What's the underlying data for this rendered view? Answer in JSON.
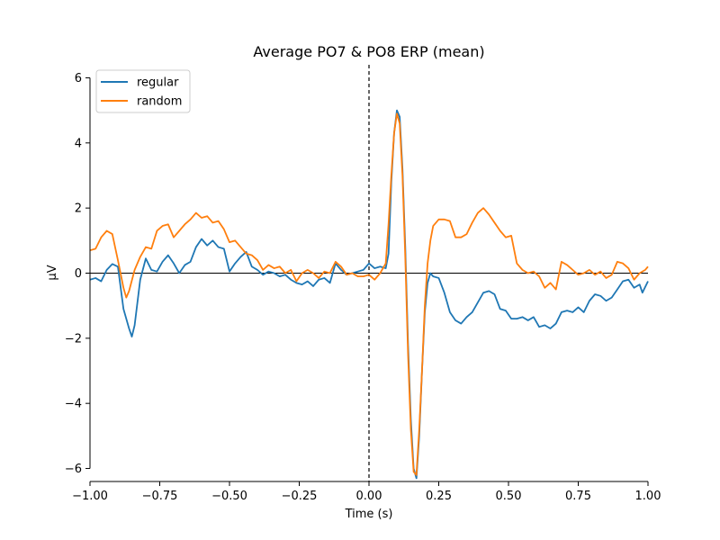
{
  "chart_data": {
    "type": "line",
    "title": "Average PO7 & PO8 ERP (mean)",
    "xlabel": "Time (s)",
    "ylabel": "µV",
    "xlim": [
      -1.0,
      1.0
    ],
    "ylim": [
      -6.4,
      6.4
    ],
    "xticks": [
      -1.0,
      -0.75,
      -0.5,
      -0.25,
      0.0,
      0.25,
      0.5,
      0.75,
      1.0
    ],
    "xtick_labels": [
      "−1.00",
      "−0.75",
      "−0.50",
      "−0.25",
      "0.00",
      "0.25",
      "0.50",
      "0.75",
      "1.00"
    ],
    "yticks": [
      -6,
      -4,
      -2,
      0,
      2,
      4,
      6
    ],
    "ytick_labels": [
      "−6",
      "−4",
      "−2",
      "0",
      "2",
      "4",
      "6"
    ],
    "grid": false,
    "legend": "top-left",
    "hline_y": 0,
    "vline_x": 0,
    "series": [
      {
        "name": "regular",
        "color": "#1f77b4",
        "points": [
          [
            -1.0,
            -0.2
          ],
          [
            -0.98,
            -0.15
          ],
          [
            -0.96,
            -0.25
          ],
          [
            -0.94,
            0.1
          ],
          [
            -0.92,
            0.28
          ],
          [
            -0.9,
            0.2
          ],
          [
            -0.88,
            -1.1
          ],
          [
            -0.86,
            -1.7
          ],
          [
            -0.85,
            -1.95
          ],
          [
            -0.84,
            -1.6
          ],
          [
            -0.82,
            -0.2
          ],
          [
            -0.8,
            0.45
          ],
          [
            -0.78,
            0.1
          ],
          [
            -0.76,
            0.05
          ],
          [
            -0.74,
            0.35
          ],
          [
            -0.72,
            0.55
          ],
          [
            -0.7,
            0.3
          ],
          [
            -0.68,
            0.0
          ],
          [
            -0.66,
            0.25
          ],
          [
            -0.64,
            0.35
          ],
          [
            -0.62,
            0.8
          ],
          [
            -0.6,
            1.05
          ],
          [
            -0.58,
            0.85
          ],
          [
            -0.56,
            1.0
          ],
          [
            -0.54,
            0.8
          ],
          [
            -0.52,
            0.75
          ],
          [
            -0.5,
            0.05
          ],
          [
            -0.48,
            0.3
          ],
          [
            -0.46,
            0.5
          ],
          [
            -0.44,
            0.65
          ],
          [
            -0.42,
            0.2
          ],
          [
            -0.4,
            0.1
          ],
          [
            -0.38,
            -0.05
          ],
          [
            -0.36,
            0.05
          ],
          [
            -0.34,
            0.0
          ],
          [
            -0.32,
            -0.1
          ],
          [
            -0.3,
            -0.05
          ],
          [
            -0.28,
            -0.2
          ],
          [
            -0.26,
            -0.3
          ],
          [
            -0.24,
            -0.35
          ],
          [
            -0.22,
            -0.25
          ],
          [
            -0.2,
            -0.4
          ],
          [
            -0.18,
            -0.2
          ],
          [
            -0.16,
            -0.15
          ],
          [
            -0.14,
            -0.3
          ],
          [
            -0.12,
            0.3
          ],
          [
            -0.1,
            0.1
          ],
          [
            -0.08,
            -0.05
          ],
          [
            -0.06,
            0.0
          ],
          [
            -0.04,
            0.05
          ],
          [
            -0.02,
            0.1
          ],
          [
            0.0,
            0.3
          ],
          [
            0.02,
            0.15
          ],
          [
            0.04,
            0.2
          ],
          [
            0.06,
            0.15
          ],
          [
            0.07,
            0.6
          ],
          [
            0.08,
            2.8
          ],
          [
            0.09,
            4.3
          ],
          [
            0.1,
            5.0
          ],
          [
            0.11,
            4.8
          ],
          [
            0.12,
            3.2
          ],
          [
            0.13,
            0.8
          ],
          [
            0.14,
            -2.2
          ],
          [
            0.15,
            -4.5
          ],
          [
            0.16,
            -6.0
          ],
          [
            0.17,
            -6.3
          ],
          [
            0.18,
            -5.0
          ],
          [
            0.19,
            -3.0
          ],
          [
            0.2,
            -1.2
          ],
          [
            0.21,
            -0.3
          ],
          [
            0.22,
            0.0
          ],
          [
            0.23,
            -0.1
          ],
          [
            0.25,
            -0.15
          ],
          [
            0.27,
            -0.6
          ],
          [
            0.29,
            -1.2
          ],
          [
            0.31,
            -1.45
          ],
          [
            0.33,
            -1.55
          ],
          [
            0.35,
            -1.35
          ],
          [
            0.37,
            -1.2
          ],
          [
            0.39,
            -0.9
          ],
          [
            0.41,
            -0.6
          ],
          [
            0.43,
            -0.55
          ],
          [
            0.45,
            -0.65
          ],
          [
            0.47,
            -1.1
          ],
          [
            0.49,
            -1.15
          ],
          [
            0.51,
            -1.4
          ],
          [
            0.53,
            -1.4
          ],
          [
            0.55,
            -1.35
          ],
          [
            0.57,
            -1.45
          ],
          [
            0.59,
            -1.35
          ],
          [
            0.61,
            -1.65
          ],
          [
            0.63,
            -1.6
          ],
          [
            0.65,
            -1.7
          ],
          [
            0.67,
            -1.55
          ],
          [
            0.69,
            -1.2
          ],
          [
            0.71,
            -1.15
          ],
          [
            0.73,
            -1.2
          ],
          [
            0.75,
            -1.05
          ],
          [
            0.77,
            -1.2
          ],
          [
            0.79,
            -0.85
          ],
          [
            0.81,
            -0.65
          ],
          [
            0.83,
            -0.7
          ],
          [
            0.85,
            -0.85
          ],
          [
            0.87,
            -0.75
          ],
          [
            0.89,
            -0.5
          ],
          [
            0.91,
            -0.25
          ],
          [
            0.93,
            -0.2
          ],
          [
            0.95,
            -0.45
          ],
          [
            0.97,
            -0.35
          ],
          [
            0.98,
            -0.6
          ],
          [
            1.0,
            -0.25
          ]
        ]
      },
      {
        "name": "random",
        "color": "#ff7f0e",
        "points": [
          [
            -1.0,
            0.7
          ],
          [
            -0.98,
            0.75
          ],
          [
            -0.96,
            1.1
          ],
          [
            -0.94,
            1.3
          ],
          [
            -0.92,
            1.2
          ],
          [
            -0.9,
            0.4
          ],
          [
            -0.88,
            -0.45
          ],
          [
            -0.87,
            -0.75
          ],
          [
            -0.86,
            -0.55
          ],
          [
            -0.84,
            0.1
          ],
          [
            -0.82,
            0.5
          ],
          [
            -0.8,
            0.8
          ],
          [
            -0.78,
            0.75
          ],
          [
            -0.76,
            1.3
          ],
          [
            -0.74,
            1.45
          ],
          [
            -0.72,
            1.5
          ],
          [
            -0.7,
            1.1
          ],
          [
            -0.68,
            1.3
          ],
          [
            -0.66,
            1.5
          ],
          [
            -0.64,
            1.65
          ],
          [
            -0.62,
            1.85
          ],
          [
            -0.6,
            1.7
          ],
          [
            -0.58,
            1.75
          ],
          [
            -0.56,
            1.55
          ],
          [
            -0.54,
            1.6
          ],
          [
            -0.52,
            1.35
          ],
          [
            -0.5,
            0.95
          ],
          [
            -0.48,
            1.0
          ],
          [
            -0.46,
            0.8
          ],
          [
            -0.44,
            0.6
          ],
          [
            -0.42,
            0.55
          ],
          [
            -0.4,
            0.4
          ],
          [
            -0.38,
            0.1
          ],
          [
            -0.36,
            0.25
          ],
          [
            -0.34,
            0.15
          ],
          [
            -0.32,
            0.2
          ],
          [
            -0.3,
            0.0
          ],
          [
            -0.28,
            0.1
          ],
          [
            -0.26,
            -0.25
          ],
          [
            -0.24,
            0.0
          ],
          [
            -0.22,
            0.1
          ],
          [
            -0.2,
            0.0
          ],
          [
            -0.18,
            -0.15
          ],
          [
            -0.16,
            0.05
          ],
          [
            -0.14,
            0.0
          ],
          [
            -0.12,
            0.35
          ],
          [
            -0.1,
            0.2
          ],
          [
            -0.08,
            -0.05
          ],
          [
            -0.06,
            0.0
          ],
          [
            -0.04,
            -0.1
          ],
          [
            -0.02,
            -0.1
          ],
          [
            0.0,
            -0.05
          ],
          [
            0.02,
            -0.2
          ],
          [
            0.04,
            0.0
          ],
          [
            0.06,
            0.3
          ],
          [
            0.07,
            1.5
          ],
          [
            0.08,
            3.0
          ],
          [
            0.09,
            4.3
          ],
          [
            0.1,
            4.9
          ],
          [
            0.11,
            4.6
          ],
          [
            0.12,
            3.0
          ],
          [
            0.13,
            0.5
          ],
          [
            0.14,
            -2.5
          ],
          [
            0.15,
            -4.8
          ],
          [
            0.16,
            -6.1
          ],
          [
            0.17,
            -6.2
          ],
          [
            0.18,
            -4.8
          ],
          [
            0.19,
            -3.0
          ],
          [
            0.2,
            -1.0
          ],
          [
            0.21,
            0.3
          ],
          [
            0.22,
            1.0
          ],
          [
            0.23,
            1.45
          ],
          [
            0.25,
            1.65
          ],
          [
            0.27,
            1.65
          ],
          [
            0.29,
            1.6
          ],
          [
            0.31,
            1.1
          ],
          [
            0.33,
            1.1
          ],
          [
            0.35,
            1.2
          ],
          [
            0.37,
            1.55
          ],
          [
            0.39,
            1.85
          ],
          [
            0.41,
            2.0
          ],
          [
            0.43,
            1.8
          ],
          [
            0.45,
            1.55
          ],
          [
            0.47,
            1.3
          ],
          [
            0.49,
            1.1
          ],
          [
            0.51,
            1.15
          ],
          [
            0.53,
            0.3
          ],
          [
            0.55,
            0.1
          ],
          [
            0.57,
            0.0
          ],
          [
            0.59,
            0.05
          ],
          [
            0.61,
            -0.1
          ],
          [
            0.63,
            -0.45
          ],
          [
            0.65,
            -0.3
          ],
          [
            0.67,
            -0.5
          ],
          [
            0.69,
            0.35
          ],
          [
            0.71,
            0.25
          ],
          [
            0.73,
            0.1
          ],
          [
            0.75,
            -0.05
          ],
          [
            0.77,
            0.0
          ],
          [
            0.79,
            0.1
          ],
          [
            0.81,
            -0.05
          ],
          [
            0.83,
            0.05
          ],
          [
            0.85,
            -0.15
          ],
          [
            0.87,
            -0.05
          ],
          [
            0.89,
            0.35
          ],
          [
            0.91,
            0.3
          ],
          [
            0.93,
            0.15
          ],
          [
            0.95,
            -0.2
          ],
          [
            0.97,
            0.0
          ],
          [
            0.99,
            0.1
          ],
          [
            1.0,
            0.2
          ]
        ]
      }
    ]
  }
}
